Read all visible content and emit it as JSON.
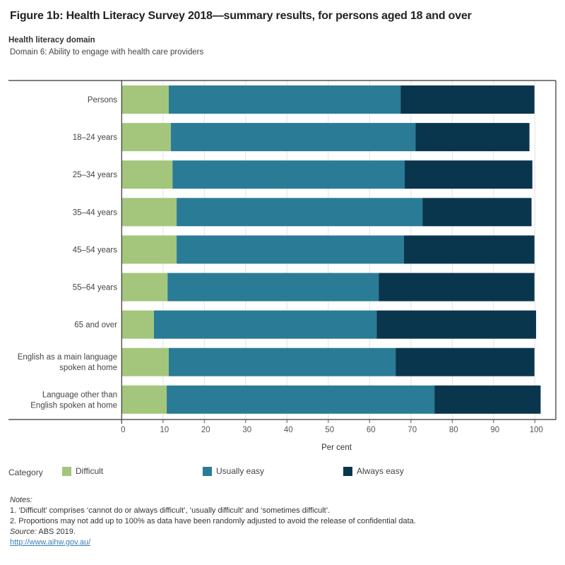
{
  "title": "Figure 1b: Health Literacy Survey 2018—summary results, for persons aged 18 and over",
  "filter": {
    "label": "Health literacy domain",
    "value": "Domain 6: Ability to engage with health care providers"
  },
  "legend": {
    "title": "Category",
    "items": [
      {
        "label": "Difficult",
        "color": "#a3c67c"
      },
      {
        "label": "Usually easy",
        "color": "#2a7b96"
      },
      {
        "label": "Always easy",
        "color": "#0a364d"
      }
    ]
  },
  "notes": {
    "heading": "Notes:",
    "lines": [
      "1. ‘Difficult’ comprises ‘cannot do or always difficult’, ‘usually difficult’ and ‘sometimes difficult’.",
      "2. Proportions may not add up to 100% as data have been randomly adjusted to avoid the release of confidential data."
    ],
    "source_label": "Source:",
    "source_text": " ABS 2019.",
    "link": "http://www.aihw.gov.au/"
  },
  "chart_data": {
    "type": "bar",
    "orientation": "horizontal",
    "stacked": true,
    "title": "Figure 1b: Health Literacy Survey 2018—summary results, for persons aged 18 and over",
    "xlabel": "Per cent",
    "ylabel": "",
    "xlim": [
      0,
      105
    ],
    "xticks": [
      0,
      10,
      20,
      30,
      40,
      50,
      60,
      70,
      80,
      90,
      100
    ],
    "grid": true,
    "legend_position": "bottom",
    "categories": [
      "Persons",
      "18–24 years",
      "25–34 years",
      "35–44 years",
      "45–54 years",
      "55–64 years",
      "65 and over",
      "English as a main language\nspoken at home",
      "Language other than\nEnglish spoken at home"
    ],
    "series": [
      {
        "name": "Difficult",
        "color": "#a3c67c",
        "values": [
          11.4,
          11.9,
          12.3,
          13.3,
          13.3,
          11.1,
          7.8,
          11.4,
          10.9
        ]
      },
      {
        "name": "Usually easy",
        "color": "#2a7b96",
        "values": [
          56.1,
          59.2,
          56.2,
          59.5,
          55.0,
          51.1,
          53.9,
          54.9,
          64.8
        ]
      },
      {
        "name": "Always easy",
        "color": "#0a364d",
        "values": [
          32.4,
          27.6,
          30.9,
          26.4,
          31.6,
          37.7,
          38.6,
          33.6,
          25.7
        ]
      }
    ]
  }
}
